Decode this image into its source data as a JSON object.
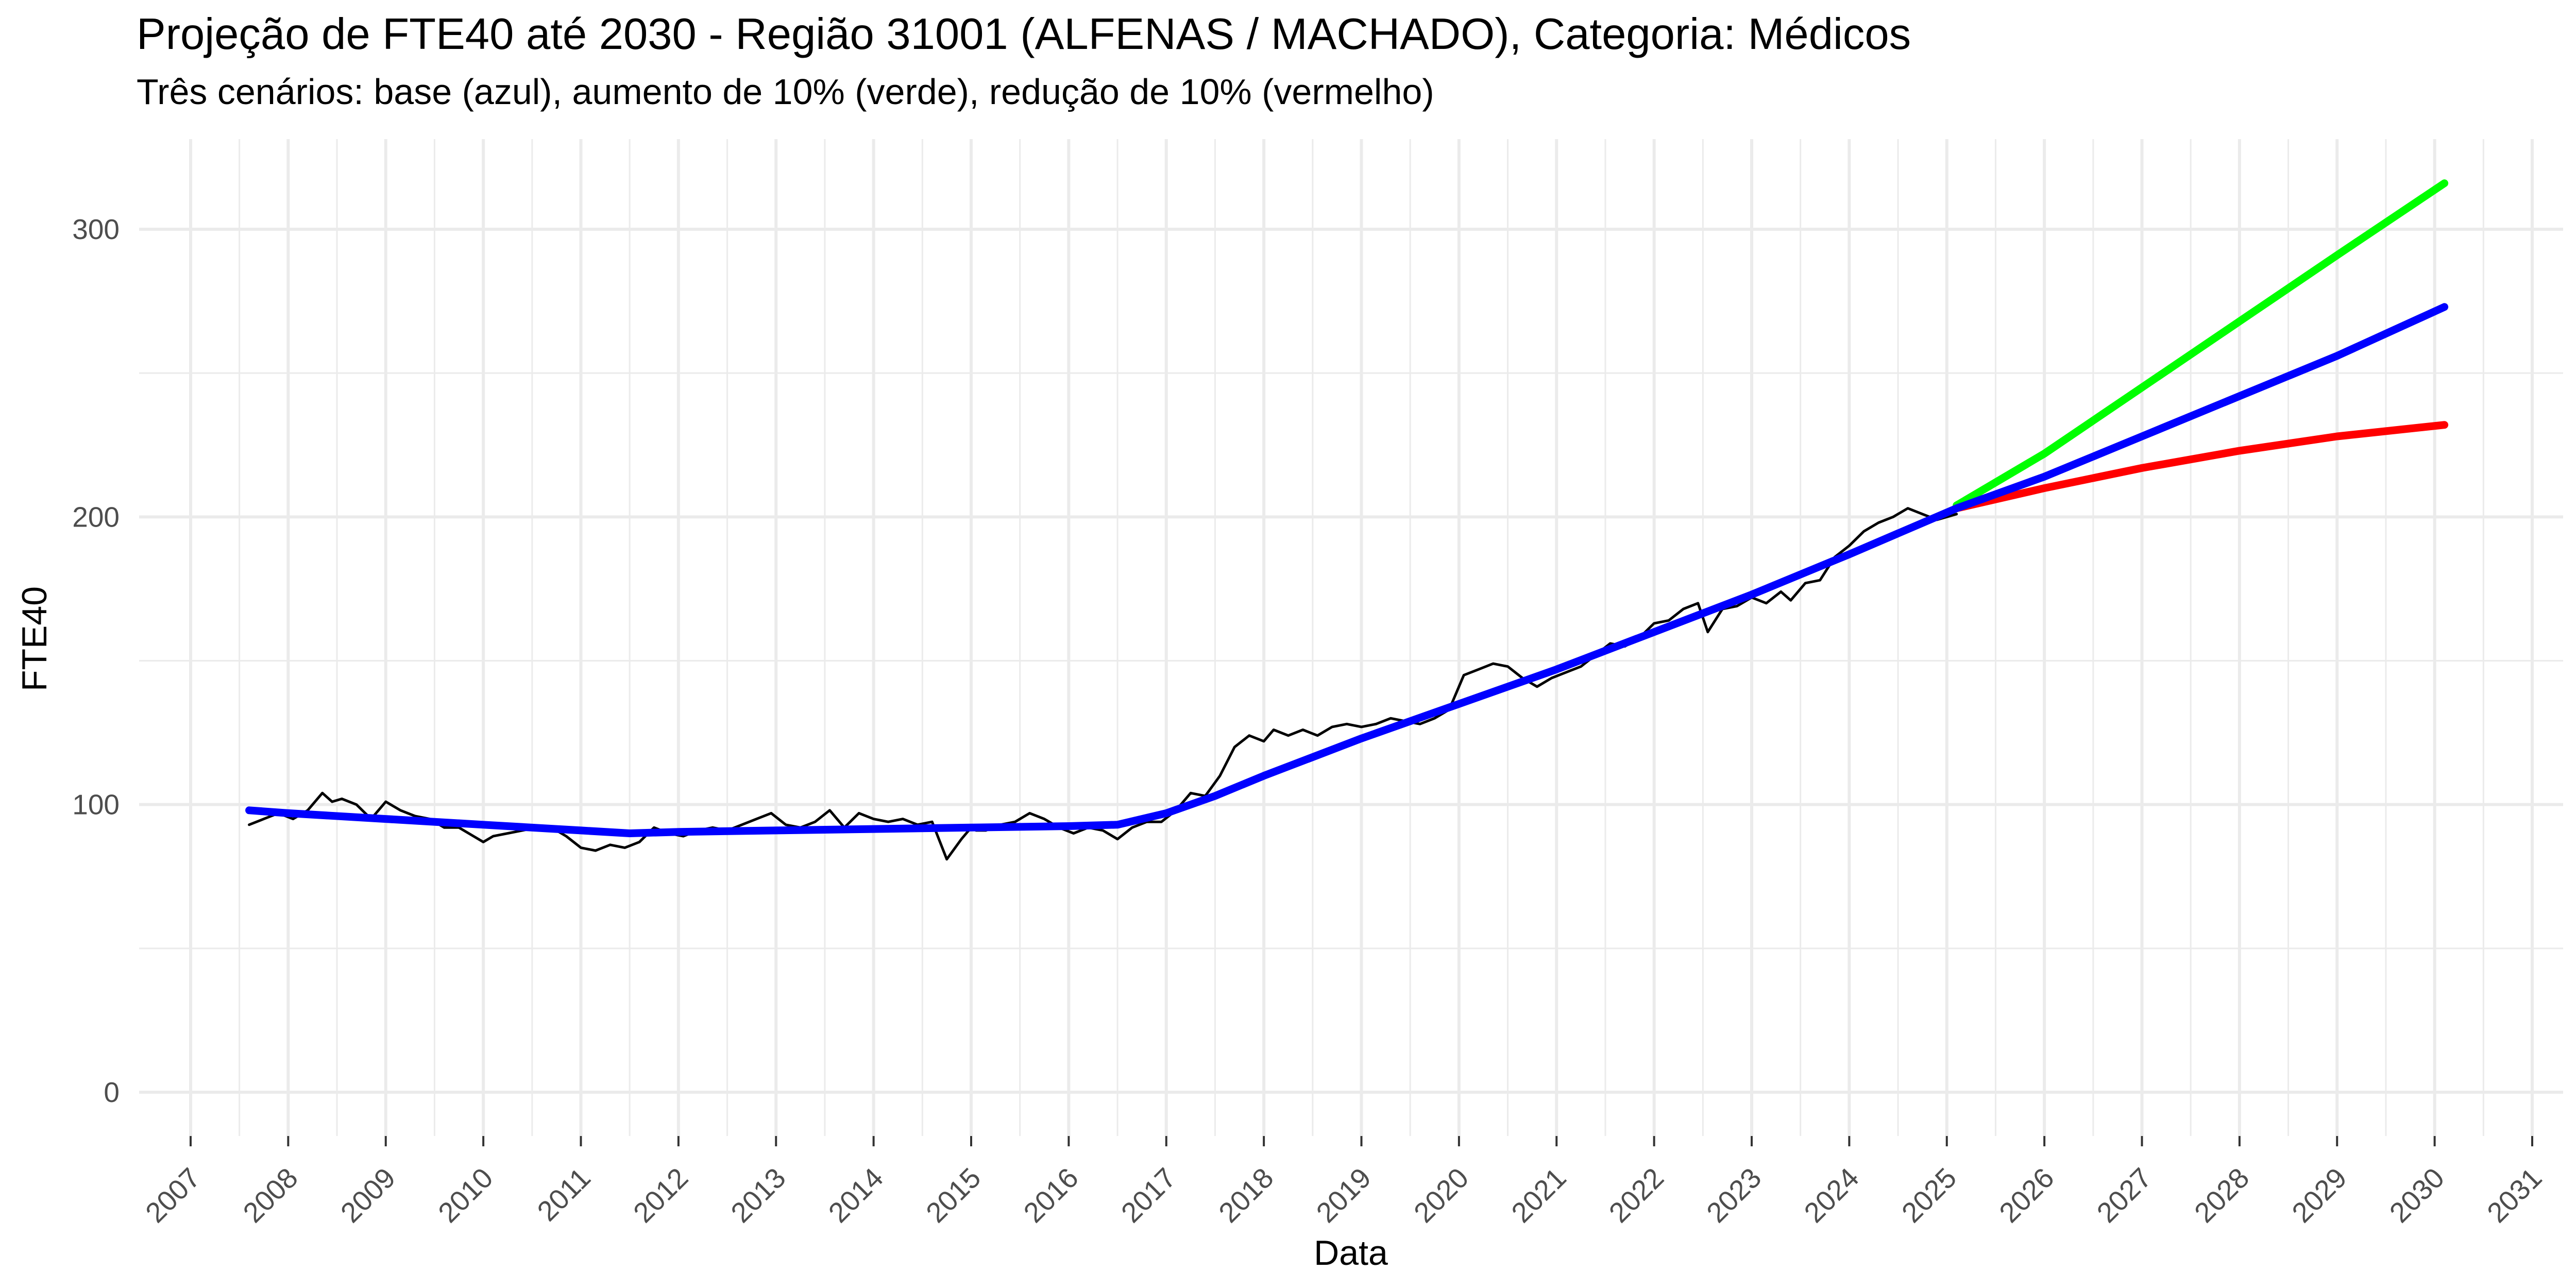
{
  "chart_data": {
    "type": "line",
    "title": "Projeção de FTE40 até 2030 - Região 31001 (ALFENAS / MACHADO), Categoria: Médicos",
    "subtitle": "Três cenários: base (azul), aumento de 10% (verde), redução de 10% (vermelho)",
    "xlabel": "Data",
    "ylabel": "FTE40",
    "xlim": [
      2007,
      2031
    ],
    "ylim": [
      0,
      300
    ],
    "x_ticks": [
      "2007",
      "2008",
      "2009",
      "2010",
      "2011",
      "2012",
      "2013",
      "2014",
      "2015",
      "2016",
      "2017",
      "2018",
      "2019",
      "2020",
      "2021",
      "2022",
      "2023",
      "2024",
      "2025",
      "2026",
      "2027",
      "2028",
      "2029",
      "2030",
      "2031"
    ],
    "y_ticks": [
      "0",
      "100",
      "200",
      "300"
    ],
    "grid": true,
    "legend": "none",
    "colors": {
      "observed": "#000000",
      "base": "#0000ff",
      "increase": "#00ff00",
      "decrease": "#ff0000",
      "grid": "#ebebeb"
    },
    "series": [
      {
        "key": "observed",
        "x": [
          2007.6,
          2007.75,
          2007.9,
          2008.05,
          2008.2,
          2008.35,
          2008.45,
          2008.55,
          2008.7,
          2008.85,
          2009.0,
          2009.15,
          2009.3,
          2009.45,
          2009.6,
          2009.75,
          2009.9,
          2010.0,
          2010.1,
          2010.25,
          2010.4,
          2010.55,
          2010.7,
          2010.85,
          2011.0,
          2011.15,
          2011.3,
          2011.45,
          2011.6,
          2011.75,
          2011.9,
          2012.05,
          2012.2,
          2012.35,
          2012.5,
          2012.65,
          2012.8,
          2012.95,
          2013.1,
          2013.25,
          2013.4,
          2013.55,
          2013.7,
          2013.85,
          2014.0,
          2014.15,
          2014.3,
          2014.45,
          2014.6,
          2014.75,
          2014.9,
          2015.0,
          2015.05,
          2015.15,
          2015.3,
          2015.45,
          2015.6,
          2015.75,
          2015.9,
          2016.05,
          2016.2,
          2016.35,
          2016.5,
          2016.65,
          2016.8,
          2016.95,
          2017.1,
          2017.25,
          2017.4,
          2017.55,
          2017.7,
          2017.85,
          2018.0,
          2018.1,
          2018.25,
          2018.4,
          2018.55,
          2018.7,
          2018.85,
          2019.0,
          2019.15,
          2019.3,
          2019.45,
          2019.6,
          2019.75,
          2019.9,
          2020.05,
          2020.2,
          2020.35,
          2020.5,
          2020.65,
          2020.8,
          2020.95,
          2021.1,
          2021.25,
          2021.4,
          2021.55,
          2021.7,
          2021.85,
          2022.0,
          2022.15,
          2022.3,
          2022.45,
          2022.55,
          2022.7,
          2022.85,
          2023.0,
          2023.15,
          2023.3,
          2023.4,
          2023.55,
          2023.7,
          2023.85,
          2024.0,
          2024.15,
          2024.3,
          2024.45,
          2024.6,
          2024.75,
          2024.9,
          2025.1
        ],
        "y": [
          93,
          95,
          97,
          95,
          98,
          104,
          101,
          102,
          100,
          95,
          101,
          98,
          96,
          95,
          92,
          92,
          89,
          87,
          89,
          90,
          91,
          92,
          92,
          89,
          85,
          84,
          86,
          85,
          87,
          92,
          90,
          89,
          91,
          92,
          91,
          93,
          95,
          97,
          93,
          92,
          94,
          98,
          92,
          97,
          95,
          94,
          95,
          93,
          94,
          81,
          88,
          92,
          91,
          91,
          93,
          94,
          97,
          95,
          92,
          90,
          92,
          91,
          88,
          92,
          94,
          94,
          98,
          104,
          103,
          110,
          120,
          124,
          122,
          126,
          124,
          126,
          124,
          127,
          128,
          127,
          128,
          130,
          129,
          128,
          130,
          133,
          145,
          147,
          149,
          148,
          144,
          141,
          144,
          146,
          148,
          152,
          156,
          155,
          158,
          163,
          164,
          168,
          170,
          160,
          168,
          169,
          172,
          170,
          174,
          171,
          177,
          178,
          186,
          190,
          195,
          198,
          200,
          203,
          201,
          199,
          201
        ],
        "stroke_width": "thin"
      },
      {
        "key": "base",
        "x": [
          2007.6,
          2008,
          2009,
          2010,
          2011,
          2011.5,
          2012,
          2013,
          2014,
          2015,
          2016,
          2016.5,
          2017,
          2017.5,
          2018,
          2019,
          2020,
          2021,
          2022,
          2023,
          2024,
          2025.1,
          2026,
          2027,
          2028,
          2029,
          2030.1
        ],
        "y": [
          98,
          97,
          95,
          93,
          91,
          90,
          90.5,
          91,
          91.5,
          92,
          92.5,
          93,
          97,
          103,
          110,
          123,
          135,
          147,
          160,
          173,
          187,
          203,
          214,
          228,
          242,
          256,
          273
        ]
      },
      {
        "key": "increase",
        "x": [
          2025.1,
          2026,
          2027,
          2028,
          2029,
          2030.1
        ],
        "y": [
          204,
          222,
          245,
          268,
          291,
          316
        ]
      },
      {
        "key": "decrease",
        "x": [
          2025.1,
          2026,
          2027,
          2028,
          2029,
          2030.1
        ],
        "y": [
          203,
          210,
          217,
          223,
          228,
          232
        ]
      }
    ]
  }
}
